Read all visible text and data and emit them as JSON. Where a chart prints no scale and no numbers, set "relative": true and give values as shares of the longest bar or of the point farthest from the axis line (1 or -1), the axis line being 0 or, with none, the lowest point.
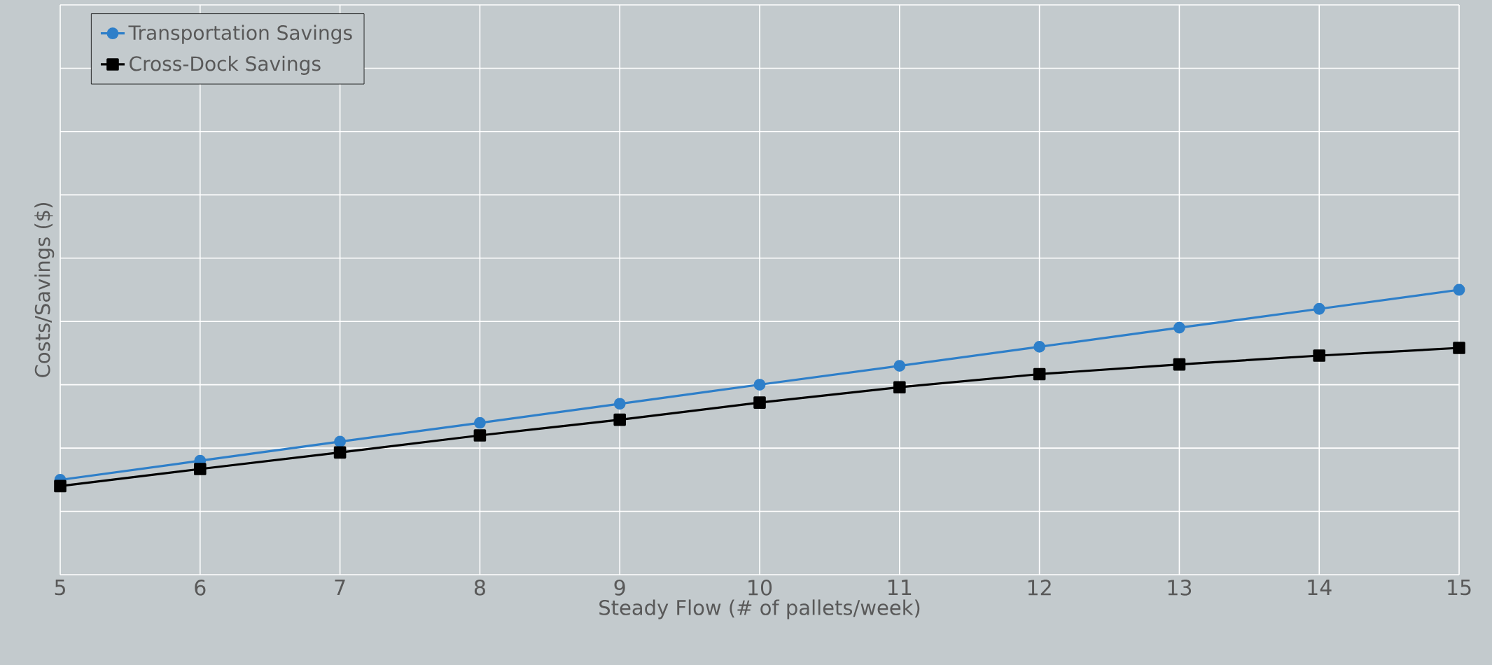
{
  "chart_data": {
    "type": "line",
    "relative": true,
    "xlabel": "Steady Flow (# of pallets/week)",
    "ylabel": "Costs/Savings ($)",
    "x": [
      5,
      6,
      7,
      8,
      9,
      10,
      11,
      12,
      13,
      14,
      15
    ],
    "xlim": [
      5,
      15
    ],
    "xticks": [
      5,
      6,
      7,
      8,
      9,
      10,
      11,
      12,
      13,
      14,
      15
    ],
    "grid": true,
    "legend": "top left",
    "series": [
      {
        "name": "Transportation Savings",
        "color": "#2e7fc9",
        "marker": "circle",
        "values": [
          0.333,
          0.4,
          0.467,
          0.533,
          0.6,
          0.667,
          0.733,
          0.8,
          0.867,
          0.933,
          1
        ]
      },
      {
        "name": "Cross-Dock Savings",
        "color": "#000000",
        "marker": "square",
        "values": [
          0.311,
          0.371,
          0.429,
          0.489,
          0.544,
          0.604,
          0.658,
          0.704,
          0.738,
          0.769,
          0.796
        ]
      }
    ]
  }
}
